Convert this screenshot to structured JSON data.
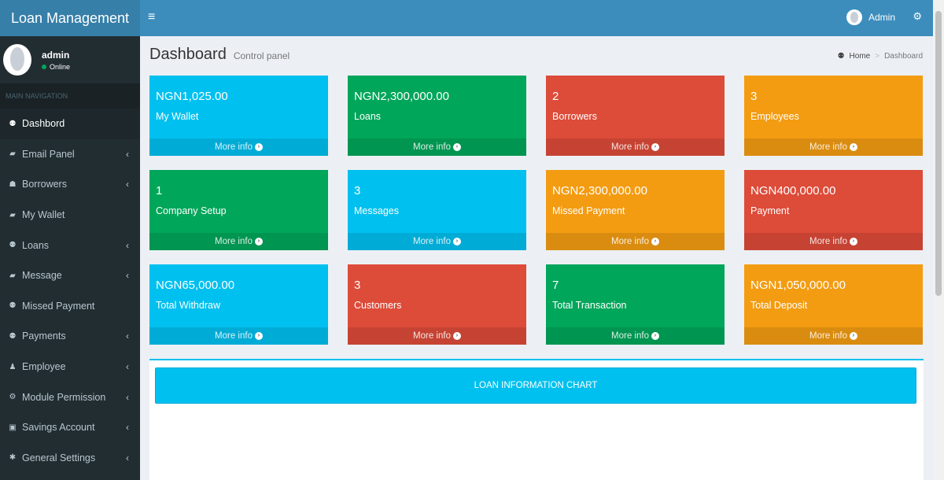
{
  "header": {
    "logo": "Loan Management",
    "menu_icon": "hamburger-icon",
    "user_label": "Admin",
    "settings_icon": "gears-icon"
  },
  "sidebar": {
    "user_name": "admin",
    "user_status": "Online",
    "nav_header": "MAIN NAVIGATION",
    "items": [
      {
        "label": "Dashbord",
        "icon": "dashboard-icon",
        "chevron": ""
      },
      {
        "label": "Email Panel",
        "icon": "book-icon",
        "chevron": "‹"
      },
      {
        "label": "Borrowers",
        "icon": "users-icon",
        "chevron": "‹"
      },
      {
        "label": "My Wallet",
        "icon": "book-icon",
        "chevron": ""
      },
      {
        "label": "Loans",
        "icon": "dashboard-icon",
        "chevron": "‹"
      },
      {
        "label": "Message",
        "icon": "book-icon",
        "chevron": "‹"
      },
      {
        "label": "Missed Payment",
        "icon": "dashboard-icon",
        "chevron": ""
      },
      {
        "label": "Payments",
        "icon": "dashboard-icon",
        "chevron": "‹"
      },
      {
        "label": "Employee",
        "icon": "user-icon",
        "chevron": "‹"
      },
      {
        "label": "Module Permission",
        "icon": "gears-icon",
        "chevron": "‹"
      },
      {
        "label": "Savings Account",
        "icon": "money-icon",
        "chevron": "‹"
      },
      {
        "label": "General Settings",
        "icon": "gear-icon",
        "chevron": "‹"
      }
    ]
  },
  "content": {
    "title": "Dashboard",
    "subtitle": "Control panel",
    "breadcrumb_home": "Home",
    "breadcrumb_current": "Dashboard",
    "more_info": "More info",
    "boxes": [
      {
        "value": "NGN1,025.00",
        "label": "My Wallet",
        "color": "#00c0ef"
      },
      {
        "value": "NGN2,300,000.00",
        "label": "Loans",
        "color": "#00a65a"
      },
      {
        "value": "2",
        "label": "Borrowers",
        "color": "#dd4b39"
      },
      {
        "value": "3",
        "label": "Employees",
        "color": "#f39c12"
      },
      {
        "value": "1",
        "label": "Company Setup",
        "color": "#00a65a"
      },
      {
        "value": "3",
        "label": "Messages",
        "color": "#00c0ef"
      },
      {
        "value": "NGN2,300,000.00",
        "label": "Missed Payment",
        "color": "#f39c12"
      },
      {
        "value": "NGN400,000.00",
        "label": "Payment",
        "color": "#dd4b39"
      },
      {
        "value": "NGN65,000.00",
        "label": "Total Withdraw",
        "color": "#00c0ef"
      },
      {
        "value": "3",
        "label": "Customers",
        "color": "#dd4b39"
      },
      {
        "value": "7",
        "label": "Total Transaction",
        "color": "#00a65a"
      },
      {
        "value": "NGN1,050,000.00",
        "label": "Total Deposit",
        "color": "#f39c12"
      }
    ],
    "chart_button": "LOAN INFORMATION CHART"
  }
}
